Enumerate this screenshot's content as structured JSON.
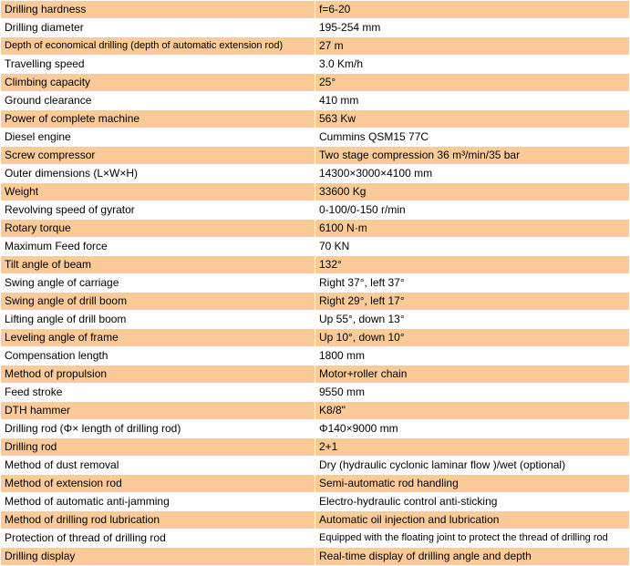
{
  "colors": {
    "row_alt_bg": "#facb96",
    "row_bg": "#ffffff",
    "grid": "#ffffff",
    "text": "#000000"
  },
  "spec_table": {
    "rows": [
      {
        "label": "Drilling hardness",
        "value": "f=6-20"
      },
      {
        "label": "Drilling diameter",
        "value": "195-254 mm"
      },
      {
        "label": "Depth of economical drilling (depth of automatic extension rod)",
        "value": "27 m"
      },
      {
        "label": "Travelling speed",
        "value": "3.0 Km/h"
      },
      {
        "label": "Climbing capacity",
        "value": "25°"
      },
      {
        "label": "Ground clearance",
        "value": "410 mm"
      },
      {
        "label": "Power of complete machine",
        "value": "563 Kw"
      },
      {
        "label": "Diesel engine",
        "value": "Cummins QSM15 77C"
      },
      {
        "label": "Screw compressor",
        "value": "Two stage compression 36 m³/min/35 bar"
      },
      {
        "label": "Outer dimensions (L×W×H)",
        "value": "14300×3000×4100 mm"
      },
      {
        "label": "Weight",
        "value": "33600 Kg"
      },
      {
        "label": "Revolving speed of gyrator",
        "value": "0-100/0-150 r/min"
      },
      {
        "label": "Rotary torque",
        "value": "6100 N·m"
      },
      {
        "label": "Maximum Feed force",
        "value": "70 KN"
      },
      {
        "label": "Tilt angle of beam",
        "value": "132°"
      },
      {
        "label": "Swing angle of carriage",
        "value": "Right 37°, left 37°"
      },
      {
        "label": "Swing angle of drill boom",
        "value": "Right 29°, left 17°"
      },
      {
        "label": "Lifting angle of drill boom",
        "value": "Up 55°, down 13°"
      },
      {
        "label": "Leveling angle of frame",
        "value": "Up 10°, down 10°"
      },
      {
        "label": "Compensation length",
        "value": "1800 mm"
      },
      {
        "label": "Method of propulsion",
        "value": "Motor+roller chain"
      },
      {
        "label": "Feed stroke",
        "value": "9550 mm"
      },
      {
        "label": "DTH hammer",
        "value": "K8/8\""
      },
      {
        "label": "Drilling rod (Φ× length of drilling rod)",
        "value": "Φ140×9000 mm"
      },
      {
        "label": "Drilling rod",
        "value": "2+1"
      },
      {
        "label": "Method of dust removal",
        "value": "Dry (hydraulic cyclonic laminar flow )/wet (optional)"
      },
      {
        "label": "Method of extension rod",
        "value": "Semi-automatic rod handling"
      },
      {
        "label": "Method of automatic anti-jamming",
        "value": "Electro-hydraulic control anti-sticking"
      },
      {
        "label": "Method of drilling rod lubrication",
        "value": "Automatic oil injection and lubrication"
      },
      {
        "label": "Protection of thread of drilling rod",
        "value": "Equipped with the floating joint to protect the thread of drilling rod"
      },
      {
        "label": "Drilling display",
        "value": "Real-time display of drilling angle and depth"
      }
    ]
  }
}
